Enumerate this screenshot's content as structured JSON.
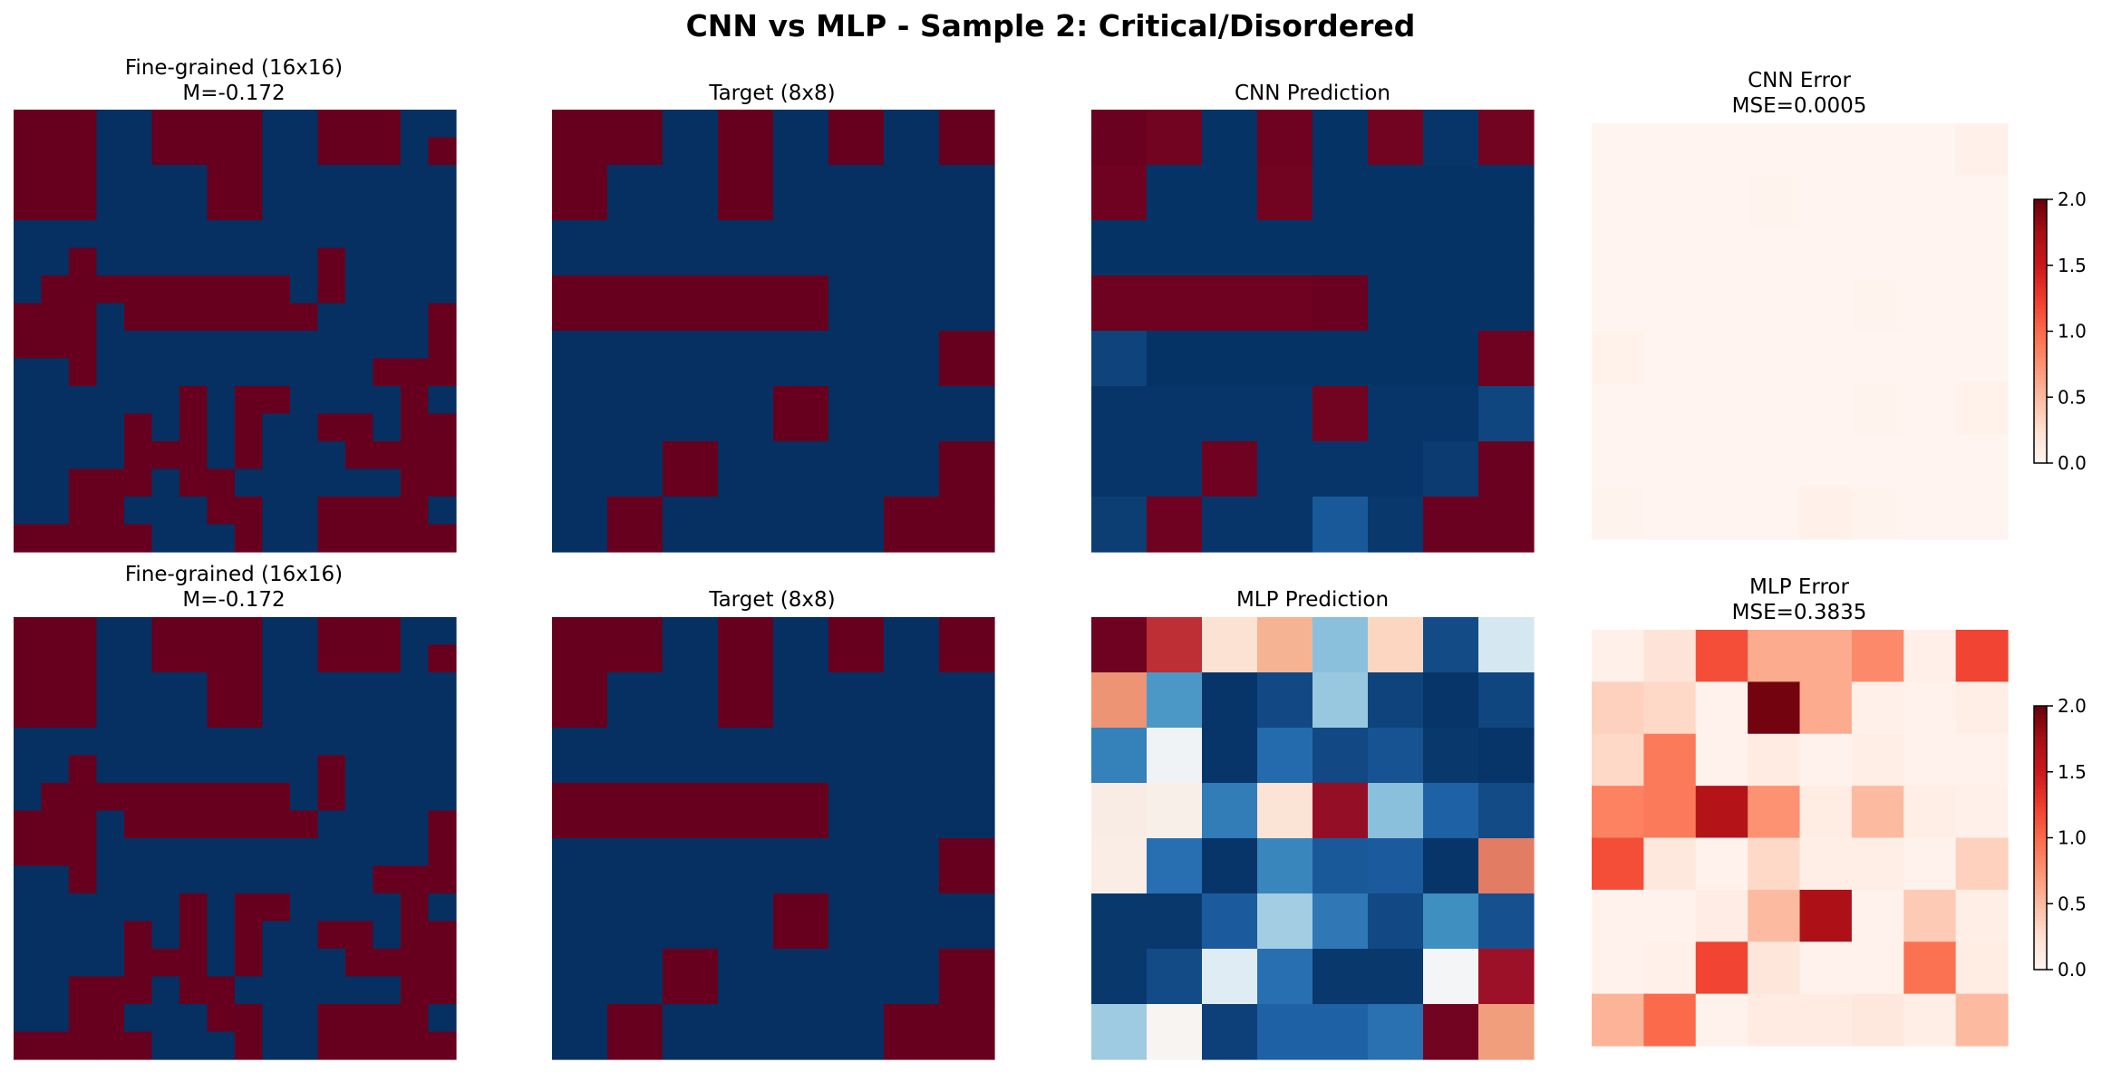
{
  "suptitle": "CNN vs MLP - Sample 2: Critical/Disordered",
  "colors": {
    "spin_up": "#67001f",
    "spin_down": "#053061",
    "error_low": "#fff5f0",
    "error_high": "#67000d"
  },
  "chart_data": [
    {
      "type": "heatmap",
      "title": "Fine-grained (16x16)",
      "subtitle": "M=-0.172",
      "colormap": "RdBu_r",
      "vmin": -1,
      "vmax": 1,
      "ticks": "off",
      "values": [
        [
          1,
          1,
          1,
          -1,
          -1,
          1,
          1,
          1,
          1,
          -1,
          -1,
          1,
          1,
          1,
          -1,
          -1
        ],
        [
          1,
          1,
          1,
          -1,
          -1,
          1,
          1,
          1,
          1,
          -1,
          -1,
          1,
          1,
          1,
          -1,
          1
        ],
        [
          1,
          1,
          1,
          -1,
          -1,
          -1,
          -1,
          1,
          1,
          -1,
          -1,
          -1,
          -1,
          -1,
          -1,
          -1
        ],
        [
          1,
          1,
          1,
          -1,
          -1,
          -1,
          -1,
          1,
          1,
          -1,
          -1,
          -1,
          -1,
          -1,
          -1,
          -1
        ],
        [
          -1,
          -1,
          -1,
          -1,
          -1,
          -1,
          -1,
          -1,
          -1,
          -1,
          -1,
          -1,
          -1,
          -1,
          -1,
          -1
        ],
        [
          -1,
          -1,
          1,
          -1,
          -1,
          -1,
          -1,
          -1,
          -1,
          -1,
          -1,
          1,
          -1,
          -1,
          -1,
          -1
        ],
        [
          -1,
          1,
          1,
          1,
          1,
          1,
          1,
          1,
          1,
          1,
          -1,
          1,
          -1,
          -1,
          -1,
          -1
        ],
        [
          1,
          1,
          1,
          -1,
          1,
          1,
          1,
          1,
          1,
          1,
          1,
          -1,
          -1,
          -1,
          -1,
          1
        ],
        [
          1,
          1,
          1,
          -1,
          -1,
          -1,
          -1,
          -1,
          -1,
          -1,
          -1,
          -1,
          -1,
          -1,
          -1,
          1
        ],
        [
          -1,
          -1,
          1,
          -1,
          -1,
          -1,
          -1,
          -1,
          -1,
          -1,
          -1,
          -1,
          -1,
          1,
          1,
          1
        ],
        [
          -1,
          -1,
          -1,
          -1,
          -1,
          -1,
          1,
          -1,
          1,
          1,
          -1,
          -1,
          -1,
          -1,
          1,
          -1
        ],
        [
          -1,
          -1,
          -1,
          -1,
          1,
          -1,
          1,
          -1,
          1,
          -1,
          -1,
          1,
          1,
          -1,
          1,
          1
        ],
        [
          -1,
          -1,
          -1,
          -1,
          1,
          1,
          1,
          -1,
          1,
          -1,
          -1,
          -1,
          1,
          1,
          1,
          1
        ],
        [
          -1,
          -1,
          1,
          1,
          1,
          -1,
          1,
          1,
          -1,
          -1,
          -1,
          -1,
          -1,
          -1,
          1,
          1
        ],
        [
          -1,
          -1,
          1,
          1,
          -1,
          -1,
          -1,
          1,
          1,
          -1,
          -1,
          1,
          1,
          1,
          1,
          -1
        ],
        [
          1,
          1,
          1,
          1,
          1,
          -1,
          -1,
          -1,
          1,
          -1,
          -1,
          1,
          1,
          1,
          1,
          1
        ]
      ]
    },
    {
      "type": "heatmap",
      "title": "Target (8x8)",
      "colormap": "RdBu_r",
      "vmin": -1,
      "vmax": 1,
      "ticks": "off",
      "values": [
        [
          1,
          1,
          -1,
          1,
          -1,
          1,
          -1,
          1
        ],
        [
          1,
          -1,
          -1,
          1,
          -1,
          -1,
          -1,
          -1
        ],
        [
          -1,
          -1,
          -1,
          -1,
          -1,
          -1,
          -1,
          -1
        ],
        [
          1,
          1,
          1,
          1,
          1,
          -1,
          -1,
          -1
        ],
        [
          -1,
          -1,
          -1,
          -1,
          -1,
          -1,
          -1,
          1
        ],
        [
          -1,
          -1,
          -1,
          -1,
          1,
          -1,
          -1,
          -1
        ],
        [
          -1,
          -1,
          1,
          -1,
          -1,
          -1,
          -1,
          1
        ],
        [
          -1,
          1,
          -1,
          -1,
          -1,
          -1,
          1,
          1
        ]
      ]
    },
    {
      "type": "heatmap",
      "title": "CNN Prediction",
      "colormap": "RdBu_r",
      "vmin": -1,
      "vmax": 1,
      "ticks": "off",
      "values": [
        [
          0.99,
          0.97,
          -0.99,
          0.98,
          -0.99,
          0.97,
          -0.98,
          0.97
        ],
        [
          0.98,
          -0.99,
          -0.99,
          0.97,
          -0.99,
          -0.99,
          -0.99,
          -0.99
        ],
        [
          -0.99,
          -0.99,
          -0.99,
          -0.99,
          -0.99,
          -0.99,
          -0.99,
          -0.99
        ],
        [
          0.98,
          0.98,
          0.98,
          0.98,
          0.99,
          -0.99,
          -0.99,
          -0.99
        ],
        [
          -0.93,
          -0.99,
          -0.99,
          -0.99,
          -0.99,
          -0.99,
          -0.99,
          0.98
        ],
        [
          -0.98,
          -0.98,
          -0.98,
          -0.98,
          0.97,
          -0.98,
          -0.98,
          -0.92
        ],
        [
          -0.98,
          -0.98,
          0.98,
          -0.98,
          -0.98,
          -0.98,
          -0.96,
          0.99
        ],
        [
          -0.95,
          0.98,
          -0.98,
          -0.98,
          -0.85,
          -0.97,
          0.99,
          0.99
        ]
      ]
    },
    {
      "type": "heatmap",
      "title": "CNN Error",
      "subtitle": "MSE=0.0005",
      "colormap": "Reds",
      "vmin": 0,
      "vmax": 2,
      "ticks": "off",
      "colorbar_ticks": [
        "0.0",
        "0.5",
        "1.0",
        "1.5",
        "2.0"
      ],
      "values": [
        [
          0.01,
          0.01,
          0.01,
          0.01,
          0.01,
          0.01,
          0.01,
          0.05
        ],
        [
          0.01,
          0.01,
          0.01,
          0.02,
          0.01,
          0.01,
          0.01,
          0.01
        ],
        [
          0.01,
          0.01,
          0.01,
          0.01,
          0.01,
          0.01,
          0.01,
          0.01
        ],
        [
          0.01,
          0.01,
          0.01,
          0.01,
          0.01,
          0.02,
          0.01,
          0.01
        ],
        [
          0.04,
          0.01,
          0.01,
          0.01,
          0.01,
          0.01,
          0.01,
          0.01
        ],
        [
          0.01,
          0.01,
          0.01,
          0.01,
          0.01,
          0.02,
          0.01,
          0.04
        ],
        [
          0.01,
          0.01,
          0.01,
          0.01,
          0.01,
          0.01,
          0.01,
          0.01
        ],
        [
          0.02,
          0.01,
          0.01,
          0.01,
          0.05,
          0.02,
          0.01,
          0.01
        ]
      ]
    },
    {
      "type": "heatmap",
      "title": "Fine-grained (16x16)",
      "subtitle": "M=-0.172",
      "colormap": "RdBu_r",
      "vmin": -1,
      "vmax": 1,
      "ticks": "off",
      "values": [
        [
          1,
          1,
          1,
          -1,
          -1,
          1,
          1,
          1,
          1,
          -1,
          -1,
          1,
          1,
          1,
          -1,
          -1
        ],
        [
          1,
          1,
          1,
          -1,
          -1,
          1,
          1,
          1,
          1,
          -1,
          -1,
          1,
          1,
          1,
          -1,
          1
        ],
        [
          1,
          1,
          1,
          -1,
          -1,
          -1,
          -1,
          1,
          1,
          -1,
          -1,
          -1,
          -1,
          -1,
          -1,
          -1
        ],
        [
          1,
          1,
          1,
          -1,
          -1,
          -1,
          -1,
          1,
          1,
          -1,
          -1,
          -1,
          -1,
          -1,
          -1,
          -1
        ],
        [
          -1,
          -1,
          -1,
          -1,
          -1,
          -1,
          -1,
          -1,
          -1,
          -1,
          -1,
          -1,
          -1,
          -1,
          -1,
          -1
        ],
        [
          -1,
          -1,
          1,
          -1,
          -1,
          -1,
          -1,
          -1,
          -1,
          -1,
          -1,
          1,
          -1,
          -1,
          -1,
          -1
        ],
        [
          -1,
          1,
          1,
          1,
          1,
          1,
          1,
          1,
          1,
          1,
          -1,
          1,
          -1,
          -1,
          -1,
          -1
        ],
        [
          1,
          1,
          1,
          -1,
          1,
          1,
          1,
          1,
          1,
          1,
          1,
          -1,
          -1,
          -1,
          -1,
          1
        ],
        [
          1,
          1,
          1,
          -1,
          -1,
          -1,
          -1,
          -1,
          -1,
          -1,
          -1,
          -1,
          -1,
          -1,
          -1,
          1
        ],
        [
          -1,
          -1,
          1,
          -1,
          -1,
          -1,
          -1,
          -1,
          -1,
          -1,
          -1,
          -1,
          -1,
          1,
          1,
          1
        ],
        [
          -1,
          -1,
          -1,
          -1,
          -1,
          -1,
          1,
          -1,
          1,
          1,
          -1,
          -1,
          -1,
          -1,
          1,
          -1
        ],
        [
          -1,
          -1,
          -1,
          -1,
          1,
          -1,
          1,
          -1,
          1,
          -1,
          -1,
          1,
          1,
          -1,
          1,
          1
        ],
        [
          -1,
          -1,
          -1,
          -1,
          1,
          1,
          1,
          -1,
          1,
          -1,
          -1,
          -1,
          1,
          1,
          1,
          1
        ],
        [
          -1,
          -1,
          1,
          1,
          1,
          -1,
          1,
          1,
          -1,
          -1,
          -1,
          -1,
          -1,
          -1,
          1,
          1
        ],
        [
          -1,
          -1,
          1,
          1,
          -1,
          -1,
          -1,
          1,
          1,
          -1,
          -1,
          1,
          1,
          1,
          1,
          -1
        ],
        [
          1,
          1,
          1,
          1,
          1,
          -1,
          -1,
          -1,
          1,
          -1,
          -1,
          1,
          1,
          1,
          1,
          1
        ]
      ]
    },
    {
      "type": "heatmap",
      "title": "Target (8x8)",
      "colormap": "RdBu_r",
      "vmin": -1,
      "vmax": 1,
      "ticks": "off",
      "values": [
        [
          1,
          1,
          -1,
          1,
          -1,
          1,
          -1,
          1
        ],
        [
          1,
          -1,
          -1,
          1,
          -1,
          -1,
          -1,
          -1
        ],
        [
          -1,
          -1,
          -1,
          -1,
          -1,
          -1,
          -1,
          -1
        ],
        [
          1,
          1,
          1,
          1,
          1,
          -1,
          -1,
          -1
        ],
        [
          -1,
          -1,
          -1,
          -1,
          -1,
          -1,
          -1,
          1
        ],
        [
          -1,
          -1,
          -1,
          -1,
          1,
          -1,
          -1,
          -1
        ],
        [
          -1,
          -1,
          1,
          -1,
          -1,
          -1,
          -1,
          1
        ],
        [
          -1,
          1,
          -1,
          -1,
          -1,
          -1,
          1,
          1
        ]
      ]
    },
    {
      "type": "heatmap",
      "title": "MLP Prediction",
      "colormap": "RdBu_r",
      "vmin": -1,
      "vmax": 1,
      "ticks": "off",
      "values": [
        [
          0.98,
          0.74,
          0.15,
          0.35,
          -0.42,
          0.22,
          -0.9,
          -0.18
        ],
        [
          0.45,
          -0.58,
          -0.98,
          -0.91,
          -0.38,
          -0.93,
          -0.98,
          -0.92
        ],
        [
          -0.68,
          -0.04,
          -0.98,
          -0.78,
          -0.91,
          -0.87,
          -0.97,
          -0.98
        ],
        [
          0.08,
          0.06,
          -0.7,
          0.14,
          0.88,
          -0.42,
          -0.82,
          -0.9
        ],
        [
          0.07,
          -0.76,
          -0.98,
          -0.66,
          -0.85,
          -0.84,
          -0.98,
          0.52
        ],
        [
          -0.97,
          -0.97,
          -0.84,
          -0.35,
          -0.72,
          -0.91,
          -0.62,
          -0.88
        ],
        [
          -0.97,
          -0.9,
          -0.12,
          -0.76,
          -0.97,
          -0.97,
          -0.02,
          0.86
        ],
        [
          -0.36,
          0.02,
          -0.94,
          -0.82,
          -0.82,
          -0.75,
          0.97,
          0.42
        ]
      ]
    },
    {
      "type": "heatmap",
      "title": "MLP Error",
      "subtitle": "MSE=0.3835",
      "colormap": "Reds",
      "vmin": 0,
      "vmax": 2,
      "ticks": "off",
      "colorbar_ticks": [
        "0.0",
        "0.5",
        "1.0",
        "1.5",
        "2.0"
      ],
      "values": [
        [
          0.05,
          0.2,
          1.15,
          0.6,
          0.6,
          0.8,
          0.07,
          1.2
        ],
        [
          0.35,
          0.3,
          0.03,
          1.95,
          0.6,
          0.06,
          0.03,
          0.08
        ],
        [
          0.3,
          0.9,
          0.03,
          0.12,
          0.03,
          0.08,
          0.03,
          0.03
        ],
        [
          0.85,
          0.9,
          1.65,
          0.75,
          0.1,
          0.5,
          0.08,
          0.06
        ],
        [
          1.15,
          0.15,
          0.03,
          0.3,
          0.08,
          0.08,
          0.03,
          0.35
        ],
        [
          0.03,
          0.03,
          0.09,
          0.5,
          1.7,
          0.03,
          0.4,
          0.08
        ],
        [
          0.03,
          0.06,
          1.2,
          0.18,
          0.03,
          0.03,
          0.95,
          0.1
        ],
        [
          0.55,
          1.0,
          0.03,
          0.12,
          0.12,
          0.15,
          0.08,
          0.5
        ]
      ]
    }
  ]
}
